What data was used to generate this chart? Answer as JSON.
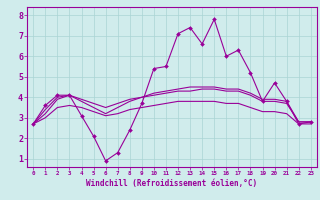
{
  "xlabel": "Windchill (Refroidissement éolien,°C)",
  "bg_color": "#d0ecec",
  "line_color": "#990099",
  "grid_color": "#aad4d4",
  "x_ticks": [
    0,
    1,
    2,
    3,
    4,
    5,
    6,
    7,
    8,
    9,
    10,
    11,
    12,
    13,
    14,
    15,
    16,
    17,
    18,
    19,
    20,
    21,
    22,
    23
  ],
  "y_ticks": [
    1,
    2,
    3,
    4,
    5,
    6,
    7,
    8
  ],
  "ylim": [
    0.6,
    8.4
  ],
  "xlim": [
    -0.5,
    23.5
  ],
  "series": [
    {
      "x": [
        0,
        1,
        2,
        3,
        4,
        5,
        6,
        7,
        8,
        9,
        10,
        11,
        12,
        13,
        14,
        15,
        16,
        17,
        18,
        19,
        20,
        21,
        22,
        23
      ],
      "y": [
        2.7,
        3.6,
        4.1,
        4.1,
        3.1,
        2.1,
        0.9,
        1.3,
        2.4,
        3.7,
        5.4,
        5.5,
        7.1,
        7.4,
        6.6,
        7.8,
        6.0,
        6.3,
        5.2,
        3.8,
        4.7,
        3.8,
        2.7,
        2.8
      ],
      "marker": true
    },
    {
      "x": [
        0,
        1,
        2,
        3,
        4,
        5,
        6,
        7,
        8,
        9,
        10,
        11,
        12,
        13,
        14,
        15,
        16,
        17,
        18,
        19,
        20,
        21,
        22,
        23
      ],
      "y": [
        2.7,
        3.4,
        4.0,
        4.1,
        3.8,
        3.5,
        3.2,
        3.5,
        3.8,
        4.0,
        4.2,
        4.3,
        4.4,
        4.5,
        4.5,
        4.5,
        4.4,
        4.4,
        4.2,
        3.9,
        3.9,
        3.8,
        2.8,
        2.8
      ],
      "marker": false
    },
    {
      "x": [
        0,
        1,
        2,
        3,
        4,
        5,
        6,
        7,
        8,
        9,
        10,
        11,
        12,
        13,
        14,
        15,
        16,
        17,
        18,
        19,
        20,
        21,
        22,
        23
      ],
      "y": [
        2.7,
        3.2,
        3.9,
        4.1,
        3.9,
        3.7,
        3.5,
        3.7,
        3.9,
        4.0,
        4.1,
        4.2,
        4.3,
        4.3,
        4.4,
        4.4,
        4.3,
        4.3,
        4.1,
        3.8,
        3.8,
        3.7,
        2.8,
        2.8
      ],
      "marker": false
    },
    {
      "x": [
        0,
        1,
        2,
        3,
        4,
        5,
        6,
        7,
        8,
        9,
        10,
        11,
        12,
        13,
        14,
        15,
        16,
        17,
        18,
        19,
        20,
        21,
        22,
        23
      ],
      "y": [
        2.7,
        3.0,
        3.5,
        3.6,
        3.5,
        3.3,
        3.1,
        3.2,
        3.4,
        3.5,
        3.6,
        3.7,
        3.8,
        3.8,
        3.8,
        3.8,
        3.7,
        3.7,
        3.5,
        3.3,
        3.3,
        3.2,
        2.7,
        2.7
      ],
      "marker": false
    }
  ],
  "xlabel_fontsize": 5.5,
  "ytick_fontsize": 6.0,
  "xtick_fontsize": 4.2
}
